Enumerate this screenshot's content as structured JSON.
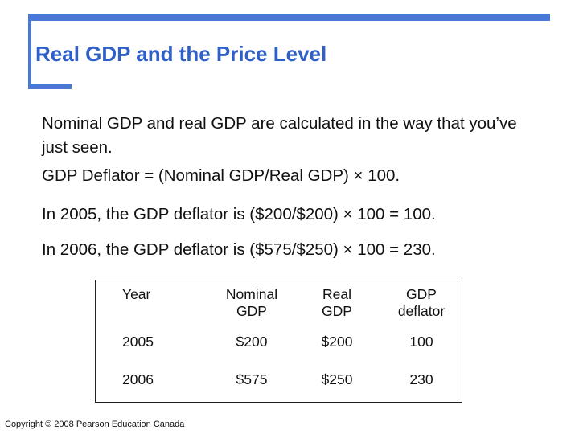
{
  "title": "Real GDP and the Price Level",
  "paragraphs": {
    "p1": "Nominal GDP and real GDP are calculated in the way that you’ve just seen.",
    "p2": "GDP Deflator = (Nominal GDP/Real GDP) × 100.",
    "p3": "In 2005, the GDP deflator is ($200/$200) × 100 = 100.",
    "p4": "In 2006, the GDP deflator is ($575/$250) × 100 = 230."
  },
  "table": {
    "headers": {
      "year": "Year",
      "nominal_line1": "Nominal",
      "nominal_line2": "GDP",
      "real_line1": "Real",
      "real_line2": "GDP",
      "deflator_line1": "GDP",
      "deflator_line2": "deflator"
    },
    "rows": [
      {
        "year": "2005",
        "nominal": "$200",
        "real": "$200",
        "deflator": "100"
      },
      {
        "year": "2006",
        "nominal": "$575",
        "real": "$250",
        "deflator": "230"
      }
    ]
  },
  "copyright": "Copyright © 2008 Pearson Education Canada",
  "colors": {
    "accent": "#4a78d6",
    "title": "#2f5fc7"
  }
}
